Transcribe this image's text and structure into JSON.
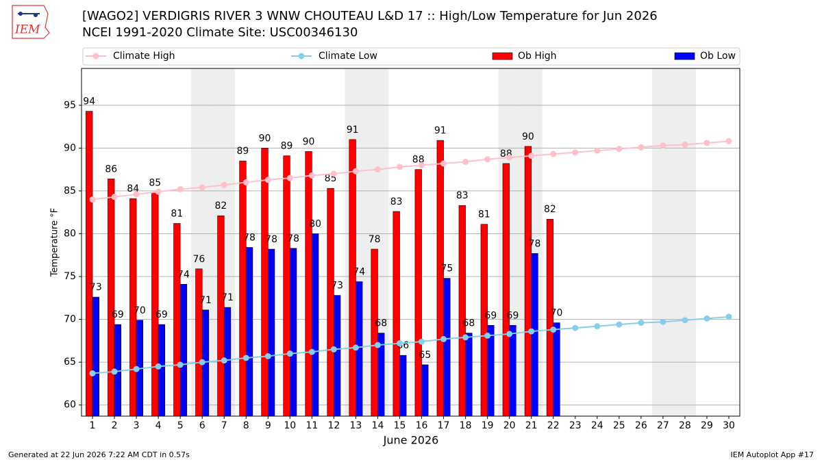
{
  "chart_data": {
    "type": "bar",
    "title": "[WAGO2] VERDIGRIS RIVER 3 WNW CHOUTEAU L&D 17 :: High/Low Temperature for Jun 2026",
    "subtitle": "NCEI 1991-2020 Climate Site: USC00346130",
    "logo_text": "IEM",
    "xlabel": "June 2026",
    "ylabel": "Temperature °F",
    "footer_left": "Generated at 22 Jun 2026 7:22 AM CDT in 0.57s",
    "footer_right": "IEM Autoplot App #17",
    "x": [
      1,
      2,
      3,
      4,
      5,
      6,
      7,
      8,
      9,
      10,
      11,
      12,
      13,
      14,
      15,
      16,
      17,
      18,
      19,
      20,
      21,
      22,
      23,
      24,
      25,
      26,
      27,
      28,
      29,
      30
    ],
    "xlim": [
      0.5,
      30.5
    ],
    "xticks": [
      1,
      2,
      3,
      4,
      5,
      6,
      7,
      8,
      9,
      10,
      11,
      12,
      13,
      14,
      15,
      16,
      17,
      18,
      19,
      20,
      21,
      22,
      23,
      24,
      25,
      26,
      27,
      28,
      29,
      30
    ],
    "ylim": [
      58.7,
      99.3
    ],
    "yticks": [
      60,
      65,
      70,
      75,
      80,
      85,
      90,
      95
    ],
    "grid": true,
    "shaded_days": [
      6,
      7,
      13,
      14,
      20,
      21,
      27,
      28
    ],
    "series": [
      {
        "name": "Climate High",
        "type": "line",
        "color": "#ffc0cb",
        "values": [
          84.0,
          84.3,
          84.6,
          84.9,
          85.2,
          85.4,
          85.7,
          86.0,
          86.3,
          86.5,
          86.8,
          87.0,
          87.3,
          87.5,
          87.8,
          88.0,
          88.2,
          88.4,
          88.7,
          88.9,
          89.1,
          89.3,
          89.5,
          89.7,
          89.9,
          90.1,
          90.3,
          90.4,
          90.6,
          90.8
        ]
      },
      {
        "name": "Climate Low",
        "type": "line",
        "color": "#87ceeb",
        "values": [
          63.7,
          63.9,
          64.2,
          64.5,
          64.7,
          65.0,
          65.2,
          65.5,
          65.7,
          66.0,
          66.2,
          66.5,
          66.7,
          67.0,
          67.2,
          67.4,
          67.7,
          67.9,
          68.1,
          68.3,
          68.6,
          68.8,
          69.0,
          69.2,
          69.4,
          69.6,
          69.7,
          69.9,
          70.1,
          70.3
        ]
      },
      {
        "name": "Ob High",
        "type": "bar",
        "color": "#ff0000",
        "values": [
          94.3,
          86.4,
          84.1,
          84.8,
          81.2,
          75.9,
          82.1,
          88.5,
          90.0,
          89.1,
          89.6,
          85.3,
          91.0,
          78.2,
          82.6,
          87.5,
          90.9,
          83.3,
          81.1,
          88.2,
          90.2,
          81.7,
          null,
          null,
          null,
          null,
          null,
          null,
          null,
          null
        ],
        "value_labels": [
          "94",
          "86",
          "84",
          "85",
          "81",
          "76",
          "82",
          "89",
          "90",
          "89",
          "90",
          "85",
          "91",
          "78",
          "83",
          "88",
          "91",
          "83",
          "81",
          "88",
          "90",
          "82",
          null,
          null,
          null,
          null,
          null,
          null,
          null,
          null
        ]
      },
      {
        "name": "Ob Low",
        "type": "bar",
        "color": "#0000ff",
        "values": [
          72.6,
          69.4,
          69.9,
          69.4,
          74.1,
          71.1,
          71.4,
          78.4,
          78.2,
          78.3,
          80.0,
          72.8,
          74.4,
          68.4,
          65.8,
          64.7,
          74.8,
          68.4,
          69.3,
          69.3,
          77.7,
          69.6,
          null,
          null,
          null,
          null,
          null,
          null,
          null,
          null
        ],
        "value_labels": [
          "73",
          "69",
          "70",
          "69",
          "74",
          "71",
          "71",
          "78",
          "78",
          "78",
          "80",
          "73",
          "74",
          "68",
          "66",
          "65",
          "75",
          "68",
          "69",
          "69",
          "78",
          "70",
          null,
          null,
          null,
          null,
          null,
          null,
          null,
          null
        ]
      }
    ]
  }
}
